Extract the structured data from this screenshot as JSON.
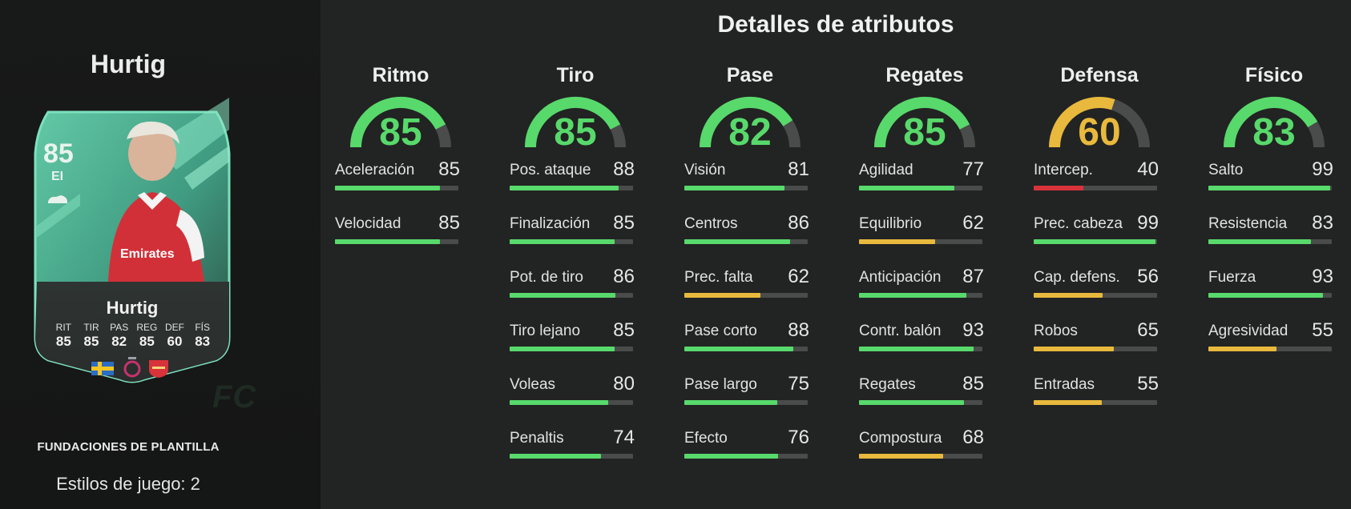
{
  "player": {
    "name": "Hurtig",
    "card_name": "Hurtig",
    "rating": "85",
    "position": "EI",
    "card_stats": [
      {
        "label": "RIT",
        "value": "85"
      },
      {
        "label": "TIR",
        "value": "85"
      },
      {
        "label": "PAS",
        "value": "82"
      },
      {
        "label": "REG",
        "value": "85"
      },
      {
        "label": "DEF",
        "value": "60"
      },
      {
        "label": "FÍS",
        "value": "83"
      }
    ],
    "nation_icon": "sweden-flag-icon",
    "league_icon": "wsl-league-icon",
    "club_icon": "arsenal-crest-icon",
    "card_color": "#4fc8a0"
  },
  "card_type": "FUNDACIONES DE PLANTILLA",
  "playstyles": "Estilos de juego: 2",
  "watermark": "FC",
  "section_title": "Detalles de atributos",
  "colors": {
    "green": "#58d96b",
    "yellow": "#e8b93c",
    "red": "#d8333a",
    "track": "#4a4b4b"
  },
  "categories": [
    {
      "name": "Ritmo",
      "value": 85,
      "stats": [
        {
          "label": "Aceleración",
          "value": 85
        },
        {
          "label": "Velocidad",
          "value": 85
        }
      ]
    },
    {
      "name": "Tiro",
      "value": 85,
      "stats": [
        {
          "label": "Pos. ataque",
          "value": 88
        },
        {
          "label": "Finalización",
          "value": 85
        },
        {
          "label": "Pot. de tiro",
          "value": 86
        },
        {
          "label": "Tiro lejano",
          "value": 85
        },
        {
          "label": "Voleas",
          "value": 80
        },
        {
          "label": "Penaltis",
          "value": 74
        }
      ]
    },
    {
      "name": "Pase",
      "value": 82,
      "stats": [
        {
          "label": "Visión",
          "value": 81
        },
        {
          "label": "Centros",
          "value": 86
        },
        {
          "label": "Prec. falta",
          "value": 62
        },
        {
          "label": "Pase corto",
          "value": 88
        },
        {
          "label": "Pase largo",
          "value": 75
        },
        {
          "label": "Efecto",
          "value": 76
        }
      ]
    },
    {
      "name": "Regates",
      "value": 85,
      "stats": [
        {
          "label": "Agilidad",
          "value": 77
        },
        {
          "label": "Equilibrio",
          "value": 62
        },
        {
          "label": "Anticipación",
          "value": 87
        },
        {
          "label": "Contr. balón",
          "value": 93
        },
        {
          "label": "Regates",
          "value": 85
        },
        {
          "label": "Compostura",
          "value": 68
        }
      ]
    },
    {
      "name": "Defensa",
      "value": 60,
      "stats": [
        {
          "label": "Intercep.",
          "value": 40
        },
        {
          "label": "Prec. cabeza",
          "value": 99
        },
        {
          "label": "Cap. defens.",
          "value": 56
        },
        {
          "label": "Robos",
          "value": 65
        },
        {
          "label": "Entradas",
          "value": 55
        }
      ]
    },
    {
      "name": "Físico",
      "value": 83,
      "stats": [
        {
          "label": "Salto",
          "value": 99
        },
        {
          "label": "Resistencia",
          "value": 83
        },
        {
          "label": "Fuerza",
          "value": 93
        },
        {
          "label": "Agresividad",
          "value": 55
        }
      ]
    }
  ]
}
